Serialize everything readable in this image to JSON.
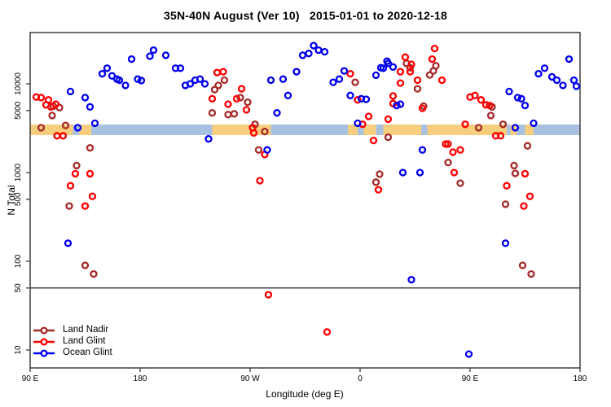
{
  "title": "35N-40N August (Ver 10)   2015-01-01 to 2020-12-18",
  "axes": {
    "x": {
      "label": "Longitude (deg E)",
      "ticks": [
        {
          "value": 90,
          "label": "90 E"
        },
        {
          "value": 180,
          "label": "180"
        },
        {
          "value": 270,
          "label": "90 W"
        },
        {
          "value": 360,
          "label": "0"
        },
        {
          "value": 450,
          "label": "90 E"
        },
        {
          "value": 540,
          "label": "180"
        }
      ]
    },
    "y": {
      "label": "N Total",
      "scale": "log",
      "ticks": [
        {
          "value": 10,
          "label": "10"
        },
        {
          "value": 50,
          "label": "50"
        },
        {
          "value": 100,
          "label": "100"
        },
        {
          "value": 500,
          "label": "500"
        },
        {
          "value": 1000,
          "label": "1000"
        },
        {
          "value": 5000,
          "label": "5000"
        },
        {
          "value": 10000,
          "label": "10000"
        }
      ]
    }
  },
  "legend": {
    "items": [
      {
        "label": "Land Nadir",
        "color_key": "land_nadir"
      },
      {
        "label": "Land Glint",
        "color_key": "land_glint"
      },
      {
        "label": "Ocean Glint",
        "color_key": "ocean_glint"
      }
    ]
  },
  "colors": {
    "land_nadir": "#A52A2A",
    "land_glint": "#FF0000",
    "ocean_glint": "#0000EE",
    "strip_land": "#F6CE7D",
    "strip_ocean": "#A9C1E1",
    "axis": "#3F3F3F",
    "reference_line": "#000000"
  },
  "map_strip": {
    "description": "land/ocean surface strip for 35N-40N drawn across the plot near N=3000",
    "segments": [
      {
        "surface": "land",
        "from": 90,
        "to": 125
      },
      {
        "surface": "ocean",
        "from": 125,
        "to": 130
      },
      {
        "surface": "land",
        "from": 130,
        "to": 140
      },
      {
        "surface": "ocean",
        "from": 140,
        "to": 239
      },
      {
        "surface": "land",
        "from": 239,
        "to": 287
      },
      {
        "surface": "ocean",
        "from": 287,
        "to": 350
      },
      {
        "surface": "land",
        "from": 350,
        "to": 358
      },
      {
        "surface": "ocean",
        "from": 358,
        "to": 363
      },
      {
        "surface": "land",
        "from": 363,
        "to": 373
      },
      {
        "surface": "ocean",
        "from": 373,
        "to": 379
      },
      {
        "surface": "land",
        "from": 379,
        "to": 410
      },
      {
        "surface": "ocean",
        "from": 410,
        "to": 415
      },
      {
        "surface": "land",
        "from": 415,
        "to": 480
      },
      {
        "surface": "ocean",
        "from": 480,
        "to": 483
      },
      {
        "surface": "land",
        "from": 483,
        "to": 488
      },
      {
        "surface": "ocean",
        "from": 488,
        "to": 495
      },
      {
        "surface": "land",
        "from": 495,
        "to": 502
      },
      {
        "surface": "ocean",
        "from": 502,
        "to": 540
      }
    ]
  },
  "reference_line": {
    "value": 50
  },
  "chart_data": {
    "type": "scatter",
    "xlabel": "Longitude (deg E)",
    "ylabel": "N Total",
    "xlim": [
      90,
      540
    ],
    "ylim": [
      6.6,
      37000
    ],
    "x_axis_note": "longitude axis wraps: 90E to 180, 90W, 0, 90E, 180",
    "legend_position": "bottom-left",
    "series": [
      {
        "name": "Land Nadir",
        "color_key": "land_nadir",
        "points": [
          [
            109,
            5600
          ],
          [
            114,
            5400
          ],
          [
            108,
            4400
          ],
          [
            99,
            3200
          ],
          [
            119,
            3400
          ],
          [
            139,
            1900
          ],
          [
            128,
            1200
          ],
          [
            122,
            420
          ],
          [
            135,
            90
          ],
          [
            142,
            72
          ],
          [
            249,
            11000
          ],
          [
            244,
            9600
          ],
          [
            241,
            8600
          ],
          [
            239,
            4700
          ],
          [
            252,
            4500
          ],
          [
            257,
            4600
          ],
          [
            262,
            7000
          ],
          [
            268,
            6200
          ],
          [
            274,
            3500
          ],
          [
            282,
            2900
          ],
          [
            277,
            1800
          ],
          [
            356,
            10400
          ],
          [
            401,
            15200
          ],
          [
            398,
            17000
          ],
          [
            422,
            16000
          ],
          [
            420,
            14000
          ],
          [
            417,
            12600
          ],
          [
            407,
            8800
          ],
          [
            412,
            5600
          ],
          [
            383,
            2500
          ],
          [
            376,
            960
          ],
          [
            373,
            780
          ],
          [
            468,
            5500
          ],
          [
            467,
            4400
          ],
          [
            477,
            3500
          ],
          [
            457,
            3200
          ],
          [
            432,
            1300
          ],
          [
            442,
            760
          ],
          [
            486,
            1200
          ],
          [
            487,
            980
          ],
          [
            497,
            2000
          ],
          [
            479,
            440
          ],
          [
            493,
            90
          ],
          [
            500,
            72
          ]
        ]
      },
      {
        "name": "Land Glint",
        "color_key": "land_glint",
        "points": [
          [
            95,
            7100
          ],
          [
            99,
            7000
          ],
          [
            105,
            6600
          ],
          [
            103,
            5800
          ],
          [
            107,
            5500
          ],
          [
            111,
            5900
          ],
          [
            112,
            2600
          ],
          [
            117,
            2600
          ],
          [
            127,
            970
          ],
          [
            139,
            970
          ],
          [
            123,
            710
          ],
          [
            141,
            540
          ],
          [
            135,
            420
          ],
          [
            243,
            13400
          ],
          [
            248,
            13700
          ],
          [
            239,
            6800
          ],
          [
            252,
            5900
          ],
          [
            263,
            8800
          ],
          [
            259,
            6800
          ],
          [
            267,
            5100
          ],
          [
            272,
            3200
          ],
          [
            273,
            2800
          ],
          [
            282,
            1600
          ],
          [
            278,
            810
          ],
          [
            352,
            13000
          ],
          [
            358,
            6600
          ],
          [
            367,
            4300
          ],
          [
            383,
            4000
          ],
          [
            362,
            3500
          ],
          [
            371,
            2300
          ],
          [
            397,
            20000
          ],
          [
            421,
            25000
          ],
          [
            419,
            19000
          ],
          [
            407,
            11000
          ],
          [
            387,
            7300
          ],
          [
            375,
            640
          ],
          [
            427,
            11000
          ],
          [
            430,
            2100
          ],
          [
            402,
            16600
          ],
          [
            393,
            13700
          ],
          [
            401,
            13700
          ],
          [
            393,
            10200
          ],
          [
            387,
            6000
          ],
          [
            411,
            5300
          ],
          [
            450,
            7100
          ],
          [
            454,
            7400
          ],
          [
            459,
            6600
          ],
          [
            463,
            5800
          ],
          [
            466,
            5700
          ],
          [
            446,
            3500
          ],
          [
            471,
            2600
          ],
          [
            475,
            2600
          ],
          [
            432,
            2100
          ],
          [
            436,
            1700
          ],
          [
            442,
            1800
          ],
          [
            437,
            1000
          ],
          [
            495,
            970
          ],
          [
            480,
            710
          ],
          [
            499,
            540
          ],
          [
            494,
            420
          ],
          [
            285,
            42
          ],
          [
            333,
            16
          ]
        ]
      },
      {
        "name": "Ocean Glint",
        "color_key": "ocean_glint",
        "points": [
          [
            173,
            19000
          ],
          [
            188,
            20500
          ],
          [
            191,
            24000
          ],
          [
            149,
            13000
          ],
          [
            153,
            15000
          ],
          [
            157,
            12300
          ],
          [
            161,
            11300
          ],
          [
            163,
            11000
          ],
          [
            168,
            9600
          ],
          [
            178,
            11300
          ],
          [
            181,
            10900
          ],
          [
            123,
            8200
          ],
          [
            135,
            7000
          ],
          [
            139,
            5500
          ],
          [
            129,
            3200
          ],
          [
            143,
            3600
          ],
          [
            201,
            21000
          ],
          [
            209,
            15000
          ],
          [
            213,
            15000
          ],
          [
            217,
            9600
          ],
          [
            221,
            10000
          ],
          [
            225,
            11000
          ],
          [
            229,
            11300
          ],
          [
            233,
            10000
          ],
          [
            236,
            2400
          ],
          [
            287,
            11000
          ],
          [
            297,
            11300
          ],
          [
            308,
            13700
          ],
          [
            301,
            7400
          ],
          [
            292,
            4700
          ],
          [
            313,
            21000
          ],
          [
            318,
            22000
          ],
          [
            322,
            27000
          ],
          [
            326,
            24000
          ],
          [
            331,
            23000
          ],
          [
            284,
            1800
          ],
          [
            347,
            14000
          ],
          [
            343,
            11300
          ],
          [
            338,
            10400
          ],
          [
            352,
            7400
          ],
          [
            361,
            6800
          ],
          [
            365,
            6700
          ],
          [
            373,
            12500
          ],
          [
            377,
            15200
          ],
          [
            382,
            18000
          ],
          [
            387,
            15500
          ],
          [
            379,
            15000
          ],
          [
            383,
            17000
          ],
          [
            390,
            5700
          ],
          [
            358,
            3600
          ],
          [
            393,
            5900
          ],
          [
            411,
            1800
          ],
          [
            395,
            1000
          ],
          [
            409,
            1000
          ],
          [
            531,
            19000
          ],
          [
            506,
            13000
          ],
          [
            511,
            15000
          ],
          [
            517,
            12000
          ],
          [
            521,
            11000
          ],
          [
            526,
            9600
          ],
          [
            535,
            11000
          ],
          [
            537,
            9400
          ],
          [
            482,
            8200
          ],
          [
            489,
            7000
          ],
          [
            492,
            6800
          ],
          [
            495,
            5700
          ],
          [
            502,
            3600
          ],
          [
            487,
            3200
          ],
          [
            121,
            160
          ],
          [
            479,
            160
          ],
          [
            402,
            62
          ],
          [
            449,
            9
          ]
        ]
      }
    ]
  }
}
